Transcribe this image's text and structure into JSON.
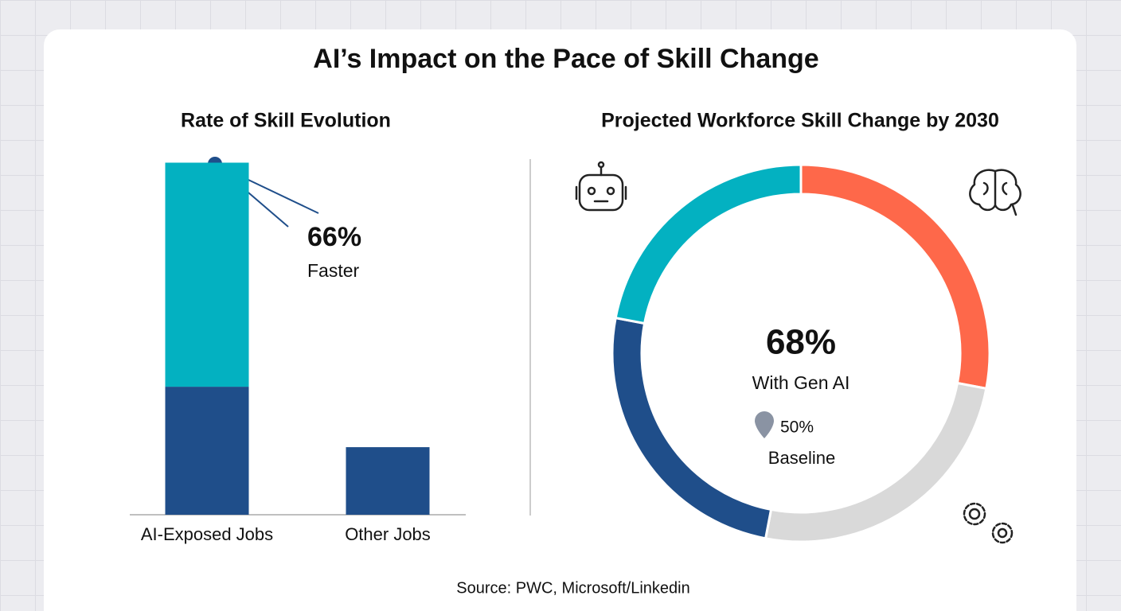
{
  "title": "AI’s Impact on the Pace of Skill Change",
  "source": "Source: PWC, Microsoft/Linkedin",
  "chart_data": [
    {
      "type": "bar",
      "title": "Rate of Skill Evolution",
      "categories": [
        "AI-Exposed Jobs",
        "Other Jobs"
      ],
      "series": [
        {
          "color": "#1f4e8a",
          "values": [
            36,
            19
          ]
        },
        {
          "color": "#03b1c1",
          "values": [
            63,
            null
          ]
        }
      ],
      "ylim": [
        0,
        100
      ],
      "annotations": [
        "66%",
        "Faster"
      ]
    },
    {
      "type": "pie",
      "title": "Projected Workforce Skill Change by 2030",
      "values": [
        28,
        25,
        25,
        22
      ],
      "colors": [
        "#fe684a",
        "#d9d9d9",
        "#1f4e8a",
        "#03b1c1"
      ],
      "annotations": [
        "68%",
        "With Gen AI",
        "50%",
        "Baseline"
      ]
    }
  ]
}
